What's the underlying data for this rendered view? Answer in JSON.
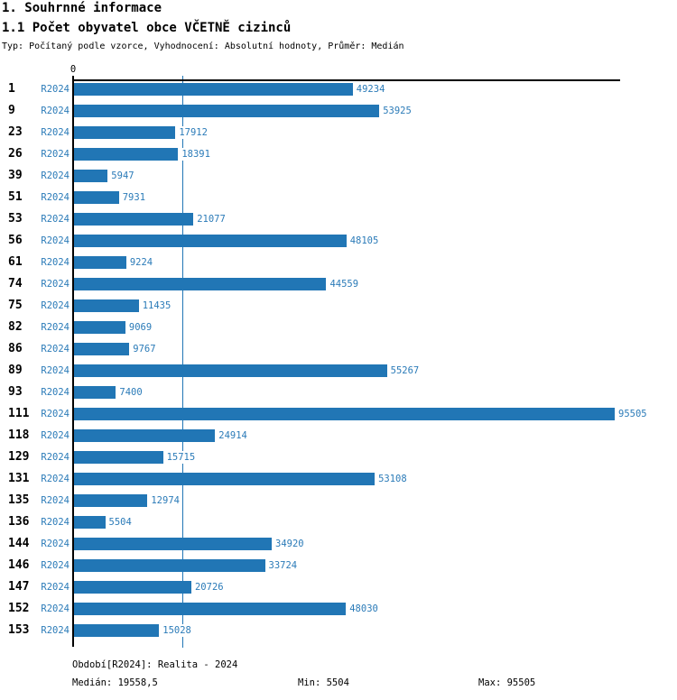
{
  "colors": {
    "accent": "#2176b5",
    "axis": "#000000",
    "label_text": "#2b7bb8"
  },
  "header": {
    "title": "1. Souhrnné informace",
    "subtitle": "1.1 Počet obyvatel obce VČETNĚ cizinců",
    "type_line": "Typ: Počítaný podle vzorce, Vyhodnocení: Absolutní hodnoty, Průměr: Medián"
  },
  "chart_data": {
    "type": "bar",
    "orientation": "horizontal",
    "series_name": "R2024",
    "categories": [
      "1",
      "9",
      "23",
      "26",
      "39",
      "51",
      "53",
      "56",
      "61",
      "74",
      "75",
      "82",
      "86",
      "89",
      "93",
      "111",
      "118",
      "129",
      "131",
      "135",
      "136",
      "144",
      "146",
      "147",
      "152",
      "153"
    ],
    "values": [
      49234,
      53925,
      17912,
      18391,
      5947,
      7931,
      21077,
      48105,
      9224,
      44559,
      11435,
      9069,
      9767,
      55267,
      7400,
      95505,
      24914,
      15715,
      53108,
      12974,
      5504,
      34920,
      33724,
      20726,
      48030,
      15028
    ],
    "xlim": [
      0,
      95505
    ],
    "zero_tick_label": "0",
    "median": 19558.5,
    "median_line": true,
    "min": 5504,
    "max": 95505,
    "value_labels": true,
    "grid": "single-median-gridline",
    "legend_position": "none"
  },
  "footer": {
    "period": "Období[R2024]: Realita - 2024",
    "median": "Medián: 19558,5",
    "min": "Min: 5504",
    "max": "Max: 95505"
  }
}
